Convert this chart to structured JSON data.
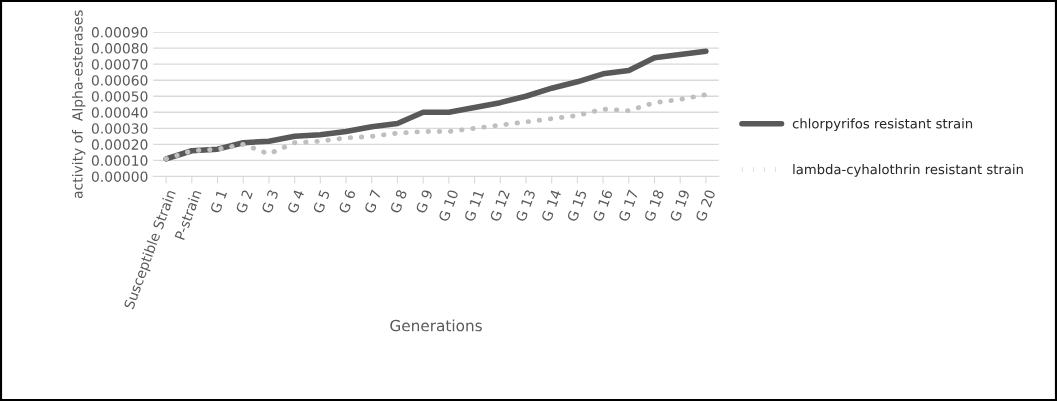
{
  "chart_data": {
    "type": "line",
    "xlabel": "Generations",
    "ylabel": "activity of  Alpha-esterases",
    "categories": [
      "Susceptible Strain",
      "P-strain",
      "G 1",
      "G 2",
      "G 3",
      "G 4",
      "G 5",
      "G 6",
      "G 7",
      "G 8",
      "G 9",
      "G 10",
      "G 11",
      "G 12",
      "G 13",
      "G 14",
      "G 15",
      "G 16",
      "G 17",
      "G 18",
      "G 19",
      "G 20"
    ],
    "series": [
      {
        "name": "chlorpyrifos resistant strain",
        "color": "#595959",
        "line_style": "solid",
        "values": [
          0.00011,
          0.00016,
          0.00017,
          0.00021,
          0.00022,
          0.00025,
          0.00026,
          0.00028,
          0.00031,
          0.00033,
          0.0004,
          0.0004,
          0.00043,
          0.00046,
          0.0005,
          0.00055,
          0.00059,
          0.00064,
          0.00066,
          0.00074,
          0.00076,
          0.00078
        ]
      },
      {
        "name": "lambda-cyhalothrin resistant strain",
        "color": "#bfbfbf",
        "line_style": "dotted",
        "values": [
          0.00011,
          0.00016,
          0.00017,
          0.0002,
          0.00014,
          0.00021,
          0.00022,
          0.00024,
          0.00025,
          0.00027,
          0.00028,
          0.00028,
          0.0003,
          0.00032,
          0.00034,
          0.00036,
          0.00038,
          0.00042,
          0.00041,
          0.00046,
          0.00048,
          0.00051
        ]
      }
    ],
    "ylim": [
      0,
      0.0009
    ],
    "yticks": [
      {
        "value": 0,
        "label": "0.00000"
      },
      {
        "value": 0.0001,
        "label": "0.00010"
      },
      {
        "value": 0.0002,
        "label": "0.00020"
      },
      {
        "value": 0.0003,
        "label": "0.00030"
      },
      {
        "value": 0.0004,
        "label": "0.00040"
      },
      {
        "value": 0.0005,
        "label": "0.00050"
      },
      {
        "value": 0.0006,
        "label": "0.00060"
      },
      {
        "value": 0.0007,
        "label": "0.00070"
      },
      {
        "value": 0.0008,
        "label": "0.00080"
      },
      {
        "value": 0.0009,
        "label": "0.00090"
      }
    ],
    "grid": "y",
    "legend": "right"
  }
}
